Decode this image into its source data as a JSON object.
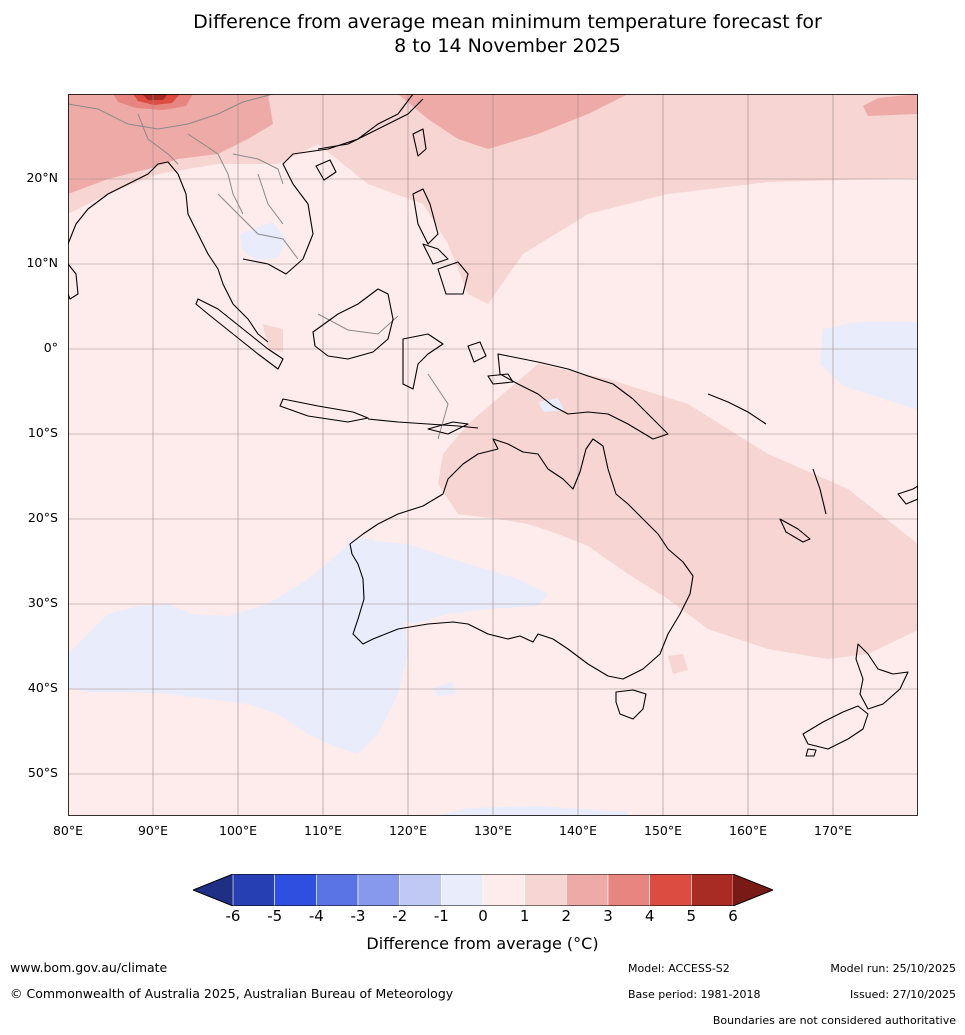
{
  "title": {
    "line1": "Difference from average mean minimum temperature forecast for",
    "line2": "8 to 14 November 2025"
  },
  "map": {
    "lat_labels": [
      "20°N",
      "10°N",
      "0°",
      "10°S",
      "20°S",
      "30°S",
      "40°S",
      "50°S"
    ],
    "lon_labels": [
      "80°E",
      "90°E",
      "100°E",
      "110°E",
      "120°E",
      "130°E",
      "140°E",
      "150°E",
      "160°E",
      "170°E"
    ],
    "extent": {
      "lon_min": 80,
      "lon_max": 180,
      "lat_min": -55,
      "lat_max": 30
    }
  },
  "legend": {
    "ticks": [
      "-6",
      "-5",
      "-4",
      "-3",
      "-2",
      "-1",
      "0",
      "1",
      "2",
      "3",
      "4",
      "5",
      "6"
    ],
    "colors": [
      "#1f2f86",
      "#2640b4",
      "#2f4fe0",
      "#5a74e6",
      "#8799ec",
      "#c0c8f4",
      "#e9ecfb",
      "#fdeceb",
      "#f6d5d3",
      "#eeaaa7",
      "#e78580",
      "#dc4c40",
      "#a82c24",
      "#7a1a16"
    ],
    "label": "Difference from average (°C)"
  },
  "footer": {
    "website": "www.bom.gov.au/climate",
    "copyright": "© Commonwealth of Australia 2025, Australian Bureau of Meteorology",
    "model": "Model: ACCESS-S2",
    "base_period": "Base period: 1981-2018",
    "model_run": "Model run: 25/10/2025",
    "issued": "Issued: 27/10/2025",
    "disclaimer": "Boundaries are not considered authoritative"
  }
}
